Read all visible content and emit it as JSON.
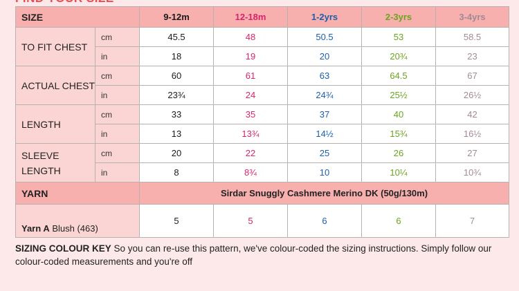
{
  "heading": "FIND YOUR SIZE",
  "colors": {
    "col0": "#1a1a1a",
    "col1": "#d6246e",
    "col2": "#1c5fa8",
    "col3": "#6aa31f",
    "col4": "#a08a96"
  },
  "table": {
    "size_label": "SIZE",
    "sizes": [
      "9-12m",
      "12-18m",
      "1-2yrs",
      "2-3yrs",
      "3-4yrs"
    ],
    "measurements": [
      {
        "label": "TO FIT CHEST",
        "cm_unit": "cm",
        "cm": [
          "45.5",
          "48",
          "50.5",
          "53",
          "58.5"
        ],
        "in_unit": "in",
        "in": [
          "18",
          "19",
          "20",
          "20¾",
          "23"
        ]
      },
      {
        "label": "ACTUAL CHEST",
        "cm_unit": "cm",
        "cm": [
          "60",
          "61",
          "63",
          "64.5",
          "67"
        ],
        "in_unit": "in",
        "in": [
          "23¾",
          "24",
          "24¾",
          "25½",
          "26½"
        ]
      },
      {
        "label": "LENGTH",
        "cm_unit": "cm",
        "cm": [
          "33",
          "35",
          "37",
          "40",
          "42"
        ],
        "in_unit": "in",
        "in": [
          "13",
          "13¾",
          "14½",
          "15¾",
          "16½"
        ]
      },
      {
        "label": "SLEEVE LENGTH",
        "cm_unit": "cm",
        "cm": [
          "20",
          "22",
          "25",
          "26",
          "27"
        ],
        "in_unit": "in",
        "in": [
          "8",
          "8¾",
          "10",
          "10¼",
          "10¾"
        ]
      }
    ],
    "yarn_label": "YARN",
    "yarn_name": "Sirdar Snuggly Cashmere Merino DK (50g/130m)",
    "yarn_a_prefix": "Yarn A",
    "yarn_a_colour": " Blush (463)",
    "yarn_a_values": [
      "5",
      "5",
      "6",
      "6",
      "7"
    ]
  },
  "footnote": {
    "title": "SIZING COLOUR KEY",
    "text": " So you can re-use this pattern, we've colour-coded the sizing instructions. Simply follow our colour-coded measurements and you're off"
  }
}
